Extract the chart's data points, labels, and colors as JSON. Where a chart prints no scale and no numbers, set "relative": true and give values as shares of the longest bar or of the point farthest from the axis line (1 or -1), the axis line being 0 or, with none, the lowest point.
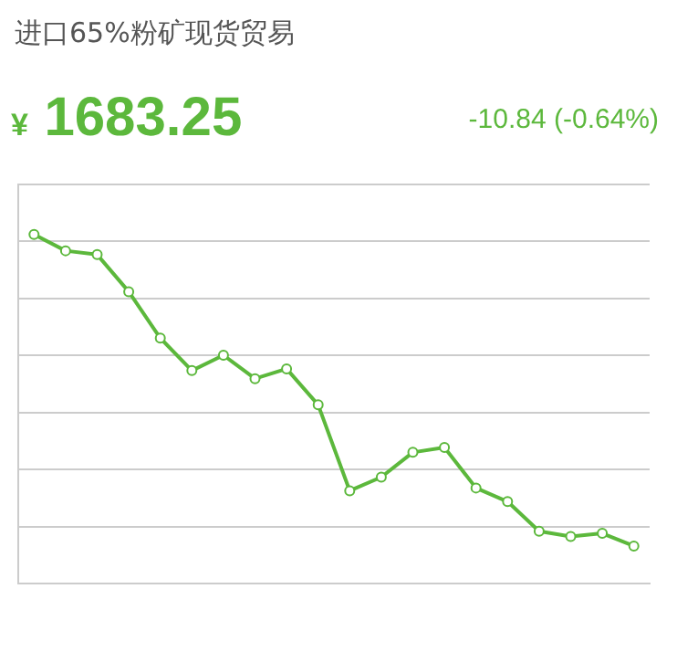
{
  "chart_data": {
    "type": "line",
    "title": "进口65%粉矿现货贸易",
    "subtitle": "¥ 1683.25",
    "annotations": [
      "-10.84 (-0.64%)"
    ],
    "relative": true,
    "grid": "y",
    "marker": "circle",
    "legend": false,
    "categories": [
      null,
      null,
      null,
      null,
      null,
      null,
      null,
      null,
      null,
      null,
      null,
      null,
      null,
      null,
      null,
      null,
      null,
      null,
      null,
      null
    ],
    "series": [
      {
        "color": "#5cb83c",
        "values": [
          1,
          0.953,
          0.942,
          0.836,
          0.703,
          0.61,
          0.654,
          0.587,
          0.615,
          0.512,
          0.266,
          0.305,
          0.376,
          0.39,
          0.274,
          0.235,
          0.15,
          0.135,
          0.144,
          0.108
        ]
      }
    ]
  }
}
